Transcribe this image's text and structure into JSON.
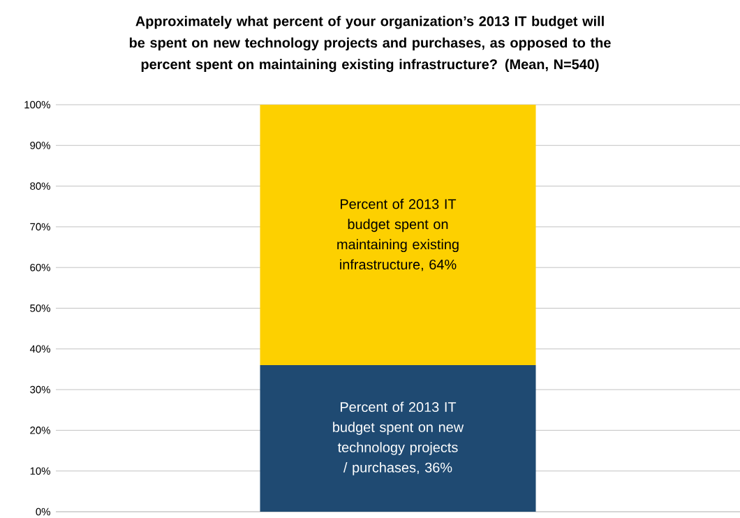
{
  "chart_data": {
    "type": "bar",
    "stacked": true,
    "title": "Approximately what percent of your organization’s 2013 IT budget will be spent on new technology projects and purchases, as opposed to the percent spent on maintaining existing infrastructure? (Mean, N=540)",
    "categories": [
      null
    ],
    "series": [
      {
        "color": "#1f4a72",
        "values": [
          36
        ],
        "value_labels": [
          "Percent of 2013 IT budget spent on new technology projects / purchases, 36%"
        ]
      },
      {
        "color": "#fdd000",
        "values": [
          64
        ],
        "value_labels": [
          "Percent of 2013 IT budget spent on maintaining existing infrastructure, 64%"
        ]
      }
    ],
    "ylim": [
      0,
      100
    ],
    "yticks": [
      {
        "value": 0,
        "label": "0%"
      },
      {
        "value": 10,
        "label": "10%"
      },
      {
        "value": 20,
        "label": "20%"
      },
      {
        "value": 30,
        "label": "30%"
      },
      {
        "value": 40,
        "label": "40%"
      },
      {
        "value": 50,
        "label": "50%"
      },
      {
        "value": 60,
        "label": "60%"
      },
      {
        "value": 70,
        "label": "70%"
      },
      {
        "value": 80,
        "label": "80%"
      },
      {
        "value": 90,
        "label": "90%"
      },
      {
        "value": 100,
        "label": "100%"
      }
    ],
    "grid": "y"
  }
}
